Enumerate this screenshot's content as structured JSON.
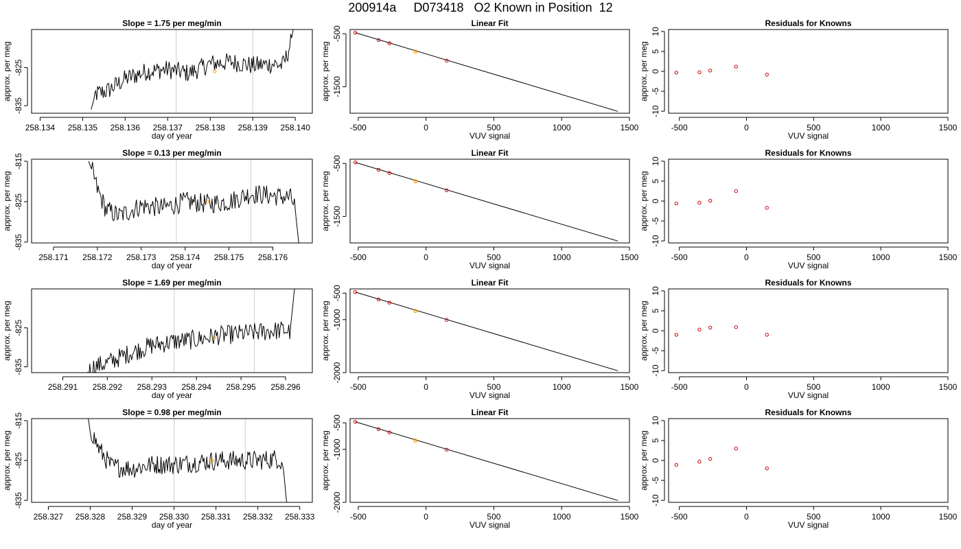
{
  "header": {
    "date": "200914a",
    "cylinder": "D073418",
    "description": "O2 Known in Position  12"
  },
  "colors": {
    "trace": "#000000",
    "grid_line": "#cccccc",
    "highlight_point": "#ffa500",
    "residual_point": "#cc0000",
    "fit_point": "#cc0000"
  },
  "chart_data": [
    {
      "type": "line",
      "title": "Slope =  1.75  per meg/min",
      "xlabel": "day of year",
      "ylabel": "approx. per meg",
      "xlim": [
        258.1338,
        258.1404
      ],
      "ylim": [
        -837,
        -815
      ],
      "xticks": [
        "258.134",
        "258.135",
        "258.136",
        "258.137",
        "258.138",
        "258.139",
        "258.140"
      ],
      "yticks": [
        -825,
        -835
      ],
      "vlines": [
        258.1372,
        258.139
      ],
      "trace_x_range": [
        258.1352,
        258.14
      ],
      "trace_points": [
        [
          258.1352,
          -836
        ],
        [
          258.1353,
          -832
        ],
        [
          258.1356,
          -831
        ],
        [
          258.136,
          -828
        ],
        [
          258.1365,
          -826
        ],
        [
          258.137,
          -825.5
        ],
        [
          258.1375,
          -826.5
        ],
        [
          258.138,
          -824
        ],
        [
          258.1385,
          -823.5
        ],
        [
          258.139,
          -824.5
        ],
        [
          258.1395,
          -824
        ],
        [
          258.1397,
          -824.5
        ],
        [
          258.1398,
          -822
        ],
        [
          258.1399,
          -818
        ],
        [
          258.14,
          -812
        ]
      ],
      "highlight": {
        "x": 258.1381,
        "y": -826
      }
    },
    {
      "type": "scatter",
      "title": "Linear Fit",
      "xlabel": "VUV signal",
      "ylabel": "approx. per meg",
      "xlim": [
        -560,
        1500
      ],
      "ylim": [
        -2000,
        -420
      ],
      "xticks": [
        -500,
        0,
        500,
        1000,
        1500
      ],
      "yticks": [
        -500,
        -1500
      ],
      "points": [
        [
          -522,
          -480
        ],
        [
          -350,
          -618
        ],
        [
          -270,
          -680
        ],
        [
          -78,
          -836
        ],
        [
          152,
          -1006
        ]
      ],
      "highlight": {
        "x": -78,
        "y": -836
      },
      "fit_line": [
        [
          -522,
          -480
        ],
        [
          1415,
          -1965
        ]
      ]
    },
    {
      "type": "scatter",
      "title": "Residuals for Knowns",
      "xlabel": "VUV signal",
      "ylabel": "approx. per meg",
      "xlim": [
        -580,
        1500
      ],
      "ylim": [
        -10.5,
        10.5
      ],
      "xticks": [
        -500,
        0,
        500,
        1000,
        1500
      ],
      "yticks": [
        10,
        5,
        0,
        -5,
        -10
      ],
      "points": [
        [
          -522,
          -0.3
        ],
        [
          -350,
          -0.2
        ],
        [
          -270,
          0.2
        ],
        [
          -78,
          1.2
        ],
        [
          152,
          -0.8
        ]
      ]
    },
    {
      "type": "line",
      "title": "Slope =  0.13  per meg/min",
      "xlabel": "day of year",
      "ylabel": "approx. per meg",
      "xlim": [
        258.1705,
        258.1769
      ],
      "ylim": [
        -835.2,
        -814.5
      ],
      "xticks": [
        "258.171",
        "258.172",
        "258.173",
        "258.174",
        "258.175",
        "258.176"
      ],
      "yticks": [
        -815,
        -825,
        -835
      ],
      "vlines": [
        258.1738,
        258.1755
      ],
      "trace_x_range": [
        258.1718,
        258.1766
      ],
      "trace_points": [
        [
          258.1718,
          -815
        ],
        [
          258.1719,
          -818
        ],
        [
          258.172,
          -822
        ],
        [
          258.1722,
          -827
        ],
        [
          258.1725,
          -828.5
        ],
        [
          258.173,
          -826
        ],
        [
          258.1735,
          -826.5
        ],
        [
          258.174,
          -825
        ],
        [
          258.1745,
          -825.5
        ],
        [
          258.175,
          -825
        ],
        [
          258.1755,
          -823
        ],
        [
          258.176,
          -823.5
        ],
        [
          258.1764,
          -824
        ],
        [
          258.1765,
          -826
        ],
        [
          258.1766,
          -836
        ]
      ],
      "highlight": {
        "x": 258.1745,
        "y": -825
      }
    },
    {
      "type": "scatter",
      "title": "Linear Fit",
      "xlabel": "VUV signal",
      "ylabel": "approx. per meg",
      "xlim": [
        -560,
        1500
      ],
      "ylim": [
        -2000,
        -420
      ],
      "xticks": [
        -500,
        0,
        500,
        1000,
        1500
      ],
      "yticks": [
        -500,
        -1500
      ],
      "points": [
        [
          -522,
          -480
        ],
        [
          -350,
          -618
        ],
        [
          -270,
          -680
        ],
        [
          -78,
          -836
        ],
        [
          152,
          -1006
        ]
      ],
      "highlight": {
        "x": -78,
        "y": -836
      },
      "fit_line": [
        [
          -522,
          -480
        ],
        [
          1415,
          -1965
        ]
      ]
    },
    {
      "type": "scatter",
      "title": "Residuals for Knowns",
      "xlabel": "VUV signal",
      "ylabel": "approx. per meg",
      "xlim": [
        -580,
        1500
      ],
      "ylim": [
        -10.5,
        10.5
      ],
      "xticks": [
        -500,
        0,
        500,
        1000,
        1500
      ],
      "yticks": [
        10,
        5,
        0,
        -5,
        -10
      ],
      "points": [
        [
          -522,
          -0.6
        ],
        [
          -350,
          -0.4
        ],
        [
          -270,
          0.1
        ],
        [
          -78,
          2.5
        ],
        [
          152,
          -1.7
        ]
      ]
    },
    {
      "type": "line",
      "title": "Slope =  1.69  per meg/min",
      "xlabel": "day of year",
      "ylabel": "approx. per meg",
      "xlim": [
        258.2903,
        258.2966
      ],
      "ylim": [
        -836.5,
        -815
      ],
      "xticks": [
        "258.291",
        "258.292",
        "258.293",
        "258.294",
        "258.295",
        "258.296"
      ],
      "yticks": [
        -825,
        -835
      ],
      "vlines": [
        258.2935,
        258.2953
      ],
      "trace_x_range": [
        258.2915,
        258.2962
      ],
      "trace_points": [
        [
          258.2915,
          -837
        ],
        [
          258.2917,
          -835
        ],
        [
          258.292,
          -834
        ],
        [
          258.2925,
          -831.5
        ],
        [
          258.293,
          -829.5
        ],
        [
          258.2935,
          -828.5
        ],
        [
          258.294,
          -828
        ],
        [
          258.2945,
          -827
        ],
        [
          258.295,
          -826.5
        ],
        [
          258.2955,
          -826
        ],
        [
          258.296,
          -825.5
        ],
        [
          258.2961,
          -826
        ],
        [
          258.2962,
          -815
        ]
      ],
      "highlight": {
        "x": 258.2944,
        "y": -827.5
      }
    },
    {
      "type": "scatter",
      "title": "Linear Fit",
      "xlabel": "VUV signal",
      "ylabel": "approx. per meg",
      "xlim": [
        -560,
        1500
      ],
      "ylim": [
        -2000,
        -420
      ],
      "xticks": [
        -500,
        0,
        500,
        1000,
        1500
      ],
      "yticks": [
        -500,
        -1000,
        -2000
      ],
      "points": [
        [
          -522,
          -480
        ],
        [
          -350,
          -618
        ],
        [
          -270,
          -680
        ],
        [
          -78,
          -836
        ],
        [
          152,
          -1006
        ]
      ],
      "highlight": {
        "x": -78,
        "y": -836
      },
      "fit_line": [
        [
          -522,
          -480
        ],
        [
          1415,
          -1965
        ]
      ]
    },
    {
      "type": "scatter",
      "title": "Residuals for Knowns",
      "xlabel": "VUV signal",
      "ylabel": "approx. per meg",
      "xlim": [
        -580,
        1500
      ],
      "ylim": [
        -10.5,
        10.5
      ],
      "xticks": [
        -500,
        0,
        500,
        1000,
        1500
      ],
      "yticks": [
        10,
        5,
        0,
        -5,
        -10
      ],
      "points": [
        [
          -522,
          -1
        ],
        [
          -350,
          0.3
        ],
        [
          -270,
          0.8
        ],
        [
          -78,
          0.9
        ],
        [
          152,
          -1
        ]
      ]
    },
    {
      "type": "line",
      "title": "Slope =  0.98  per meg/min",
      "xlabel": "day of year",
      "ylabel": "approx. per meg",
      "xlim": [
        258.3266,
        258.3333
      ],
      "ylim": [
        -835.5,
        -814.5
      ],
      "xticks": [
        "258.327",
        "258.328",
        "258.329",
        "258.330",
        "258.331",
        "258.332",
        "258.333"
      ],
      "yticks": [
        -815,
        -825,
        -835
      ],
      "vlines": [
        258.33,
        258.3317
      ],
      "trace_x_range": [
        258.3279,
        258.3327
      ],
      "trace_points": [
        [
          258.3279,
          -812
        ],
        [
          258.328,
          -817
        ],
        [
          258.3282,
          -822
        ],
        [
          258.3285,
          -826.5
        ],
        [
          258.329,
          -827
        ],
        [
          258.3295,
          -826
        ],
        [
          258.33,
          -826
        ],
        [
          258.3305,
          -825.5
        ],
        [
          258.331,
          -825
        ],
        [
          258.3315,
          -825
        ],
        [
          258.332,
          -825
        ],
        [
          258.3325,
          -824.5
        ],
        [
          258.3326,
          -826
        ],
        [
          258.3327,
          -837
        ]
      ],
      "highlight": {
        "x": 258.3309,
        "y": -825
      }
    },
    {
      "type": "scatter",
      "title": "Linear Fit",
      "xlabel": "VUV signal",
      "ylabel": "approx. per meg",
      "xlim": [
        -560,
        1500
      ],
      "ylim": [
        -2000,
        -420
      ],
      "xticks": [
        -500,
        0,
        500,
        1000,
        1500
      ],
      "yticks": [
        -500,
        -1000,
        -2000
      ],
      "points": [
        [
          -522,
          -480
        ],
        [
          -350,
          -618
        ],
        [
          -270,
          -680
        ],
        [
          -78,
          -836
        ],
        [
          152,
          -1006
        ]
      ],
      "highlight": {
        "x": -78,
        "y": -836
      },
      "fit_line": [
        [
          -522,
          -480
        ],
        [
          1415,
          -1965
        ]
      ]
    },
    {
      "type": "scatter",
      "title": "Residuals for Knowns",
      "xlabel": "VUV signal",
      "ylabel": "approx. per meg",
      "xlim": [
        -580,
        1500
      ],
      "ylim": [
        -10.5,
        10.5
      ],
      "xticks": [
        -500,
        0,
        500,
        1000,
        1500
      ],
      "yticks": [
        10,
        5,
        0,
        -5,
        -10
      ],
      "points": [
        [
          -522,
          -1.1
        ],
        [
          -350,
          -0.3
        ],
        [
          -270,
          0.4
        ],
        [
          -78,
          3
        ],
        [
          152,
          -2
        ]
      ]
    }
  ]
}
